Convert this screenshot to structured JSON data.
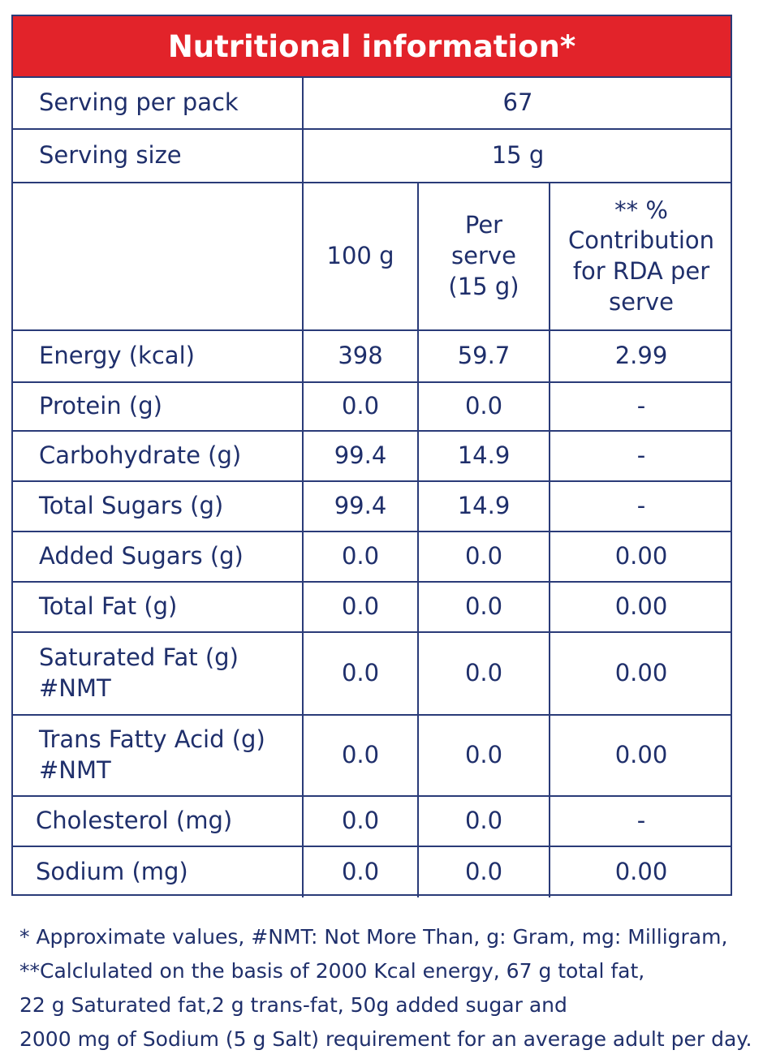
{
  "title": "Nutritional information*",
  "serving_per_pack": {
    "label": "Serving per pack",
    "value": "67"
  },
  "serving_size": {
    "label": "Serving size",
    "value": "15 g"
  },
  "columns": {
    "col1": "100 g",
    "col2": "Per serve (15 g)",
    "col3": "** % Contribution for RDA per serve"
  },
  "rows": [
    {
      "label": "Energy (kcal)",
      "per100": "398",
      "perserve": "59.7",
      "rda": "2.99"
    },
    {
      "label": "Protein (g)",
      "per100": "0.0",
      "perserve": "0.0",
      "rda": "-"
    },
    {
      "label": "Carbohydrate (g)",
      "per100": "99.4",
      "perserve": "14.9",
      "rda": "-"
    },
    {
      "label": "Total Sugars (g)",
      "per100": "99.4",
      "perserve": "14.9",
      "rda": "-"
    },
    {
      "label": "Added Sugars (g)",
      "per100": "0.0",
      "perserve": "0.0",
      "rda": "0.00"
    },
    {
      "label": "Total Fat (g)",
      "per100": "0.0",
      "perserve": "0.0",
      "rda": "0.00"
    },
    {
      "label": "Saturated Fat (g) #NMT",
      "per100": "0.0",
      "perserve": "0.0",
      "rda": "0.00"
    },
    {
      "label": "Trans Fatty Acid (g) #NMT",
      "per100": "0.0",
      "perserve": "0.0",
      "rda": "0.00"
    },
    {
      "label": "Cholesterol (mg)",
      "per100": "0.0",
      "perserve": "0.0",
      "rda": "-"
    },
    {
      "label": "Sodium (mg)",
      "per100": "0.0",
      "perserve": "0.0",
      "rda": "0.00"
    }
  ],
  "footnotes": [
    "* Approximate values, #NMT: Not More Than, g: Gram, mg: Milligram,",
    "**Calclulated on the basis of 2000 Kcal energy, 67 g total fat,",
    "22 g Saturated fat,2 g trans-fat, 50g added sugar and",
    "2000 mg of Sodium (5 g Salt) requirement for an average adult per day."
  ]
}
